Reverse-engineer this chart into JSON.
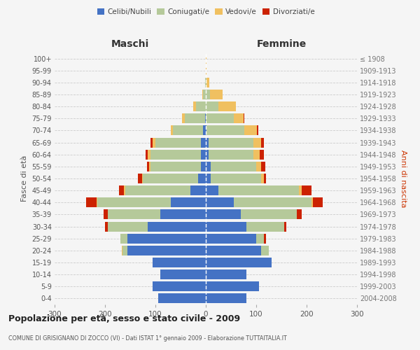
{
  "age_groups": [
    "0-4",
    "5-9",
    "10-14",
    "15-19",
    "20-24",
    "25-29",
    "30-34",
    "35-39",
    "40-44",
    "45-49",
    "50-54",
    "55-59",
    "60-64",
    "65-69",
    "70-74",
    "75-79",
    "80-84",
    "85-89",
    "90-94",
    "95-99",
    "100+"
  ],
  "birth_years": [
    "2004-2008",
    "1999-2003",
    "1994-1998",
    "1989-1993",
    "1984-1988",
    "1979-1983",
    "1974-1978",
    "1969-1973",
    "1964-1968",
    "1959-1963",
    "1954-1958",
    "1949-1953",
    "1944-1948",
    "1939-1943",
    "1934-1938",
    "1929-1933",
    "1924-1928",
    "1919-1923",
    "1914-1918",
    "1909-1913",
    "≤ 1908"
  ],
  "maschi": {
    "celibi": [
      95,
      105,
      90,
      105,
      155,
      155,
      115,
      90,
      70,
      30,
      15,
      10,
      10,
      10,
      5,
      2,
      0,
      0,
      0,
      0,
      0
    ],
    "coniugati": [
      0,
      0,
      0,
      0,
      10,
      15,
      80,
      105,
      145,
      130,
      110,
      100,
      100,
      90,
      60,
      40,
      20,
      5,
      2,
      0,
      0
    ],
    "vedovi": [
      0,
      0,
      0,
      0,
      2,
      0,
      0,
      0,
      2,
      2,
      2,
      2,
      5,
      5,
      5,
      5,
      5,
      2,
      0,
      0,
      0
    ],
    "divorziati": [
      0,
      0,
      0,
      0,
      0,
      0,
      5,
      8,
      20,
      10,
      8,
      5,
      5,
      5,
      0,
      0,
      0,
      0,
      0,
      0,
      0
    ]
  },
  "femmine": {
    "nubili": [
      80,
      105,
      80,
      130,
      110,
      100,
      80,
      70,
      55,
      25,
      10,
      10,
      5,
      5,
      2,
      0,
      0,
      0,
      0,
      0,
      0
    ],
    "coniugate": [
      0,
      0,
      0,
      0,
      15,
      15,
      75,
      110,
      155,
      160,
      100,
      90,
      90,
      90,
      75,
      55,
      25,
      8,
      2,
      0,
      0
    ],
    "vedove": [
      0,
      0,
      0,
      0,
      0,
      0,
      0,
      0,
      2,
      5,
      5,
      10,
      12,
      15,
      25,
      20,
      35,
      25,
      5,
      1,
      1
    ],
    "divorziate": [
      0,
      0,
      0,
      0,
      0,
      5,
      5,
      10,
      20,
      20,
      5,
      8,
      8,
      5,
      2,
      2,
      0,
      0,
      0,
      0,
      0
    ]
  },
  "color_celibi": "#4472c4",
  "color_coniugati": "#b5c99a",
  "color_vedovi": "#f0c060",
  "color_divorziati": "#cc2200",
  "xlim": 300,
  "title": "Popolazione per età, sesso e stato civile - 2009",
  "subtitle": "COMUNE DI GRISIGNANO DI ZOCCO (VI) - Dati ISTAT 1° gennaio 2009 - Elaborazione TUTTAITALIA.IT",
  "xlabel_left": "Maschi",
  "xlabel_right": "Femmine",
  "ylabel_left": "Fasce di età",
  "ylabel_right": "Anni di nascita",
  "bg_color": "#f5f5f5",
  "grid_color": "#cccccc",
  "legend_labels": [
    "Celibi/Nubili",
    "Coniugati/e",
    "Vedovi/e",
    "Divorziati/e"
  ]
}
